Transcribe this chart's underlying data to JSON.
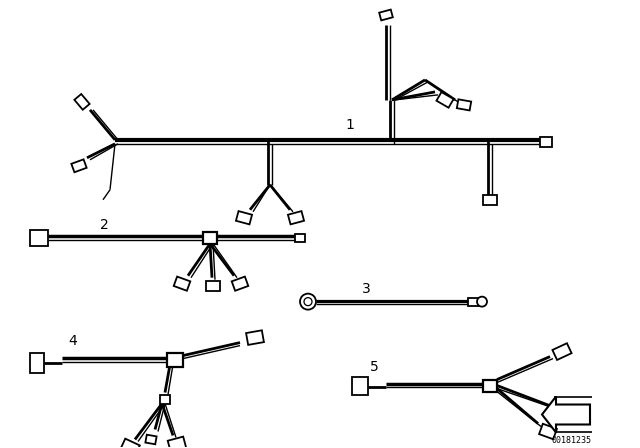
{
  "bg_color": "#ffffff",
  "line_color": "#000000",
  "lw_main": 2.0,
  "lw_thin": 1.0,
  "lw_connector": 1.3,
  "part_number": "00181235"
}
